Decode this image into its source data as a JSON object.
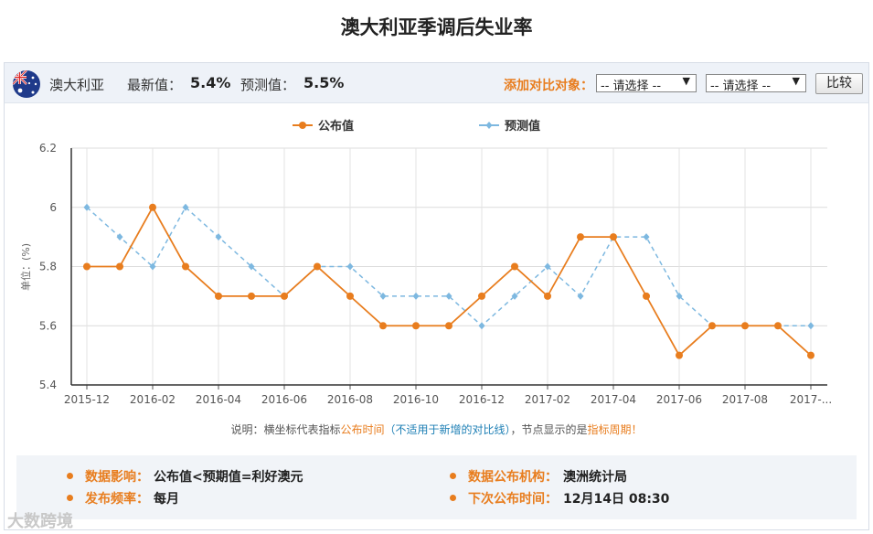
{
  "title": "澳大利亚季调后失业率",
  "header": {
    "country": "澳大利亚",
    "latest_label": "最新值：",
    "latest_value": "5.4%",
    "forecast_label": "预测值：",
    "forecast_value": "5.5%",
    "compare_label": "添加对比对象：",
    "select1": "-- 请选择 --",
    "select2": "-- 请选择 --",
    "compare_button": "比较"
  },
  "note": {
    "p1": "说明：横坐标代表指标",
    "p2": "公布时间",
    "p3": "（不适用于新增的对比线）",
    "p4": "，节点显示的是",
    "p5": "指标周期",
    "p6": "！"
  },
  "info": {
    "impact_label": "数据影响：",
    "impact_value": "公布值<预期值=利好澳元",
    "org_label": "数据公布机构：",
    "org_value": "澳洲统计局",
    "freq_label": "发布频率：",
    "freq_value": "每月",
    "next_label": "下次公布时间：",
    "next_value": "12月14日 08:30"
  },
  "watermark": "大数跨境",
  "colors": {
    "published": "#e87d1e",
    "forecast": "#7db8e0",
    "accent": "#e87d1e"
  },
  "chart_data": {
    "type": "line",
    "ylabel": "单位：(%)",
    "ylim": [
      5.4,
      6.2
    ],
    "yticks": [
      "5.4",
      "5.6",
      "5.8",
      "6",
      "6.2"
    ],
    "x": [
      "2015-12",
      "2016-01",
      "2016-02",
      "2016-03",
      "2016-04",
      "2016-05",
      "2016-06",
      "2016-07",
      "2016-08",
      "2016-09",
      "2016-10",
      "2016-11",
      "2016-12",
      "2017-01",
      "2017-02",
      "2017-03",
      "2017-04",
      "2017-05",
      "2017-06",
      "2017-07",
      "2017-08",
      "2017-09",
      "2017-10"
    ],
    "xtick_labels": [
      "2015-12",
      "2016-02",
      "2016-04",
      "2016-06",
      "2016-08",
      "2016-10",
      "2016-12",
      "2017-02",
      "2017-04",
      "2017-06",
      "2017-08",
      "2017-..."
    ],
    "legend_position": "top",
    "grid": true,
    "series": [
      {
        "name": "公布值",
        "style": "solid",
        "values": [
          5.8,
          5.8,
          6.0,
          5.8,
          5.7,
          5.7,
          5.7,
          5.8,
          5.7,
          5.6,
          5.6,
          5.6,
          5.7,
          5.8,
          5.7,
          5.9,
          5.9,
          5.7,
          5.5,
          5.6,
          5.6,
          5.6,
          5.5
        ]
      },
      {
        "name": "预测值",
        "style": "dashed",
        "values": [
          6.0,
          5.9,
          5.8,
          6.0,
          5.9,
          5.8,
          5.7,
          5.8,
          5.8,
          5.7,
          5.7,
          5.7,
          5.6,
          5.7,
          5.8,
          5.7,
          5.9,
          5.9,
          5.7,
          5.6,
          5.6,
          5.6,
          5.6
        ]
      }
    ]
  }
}
